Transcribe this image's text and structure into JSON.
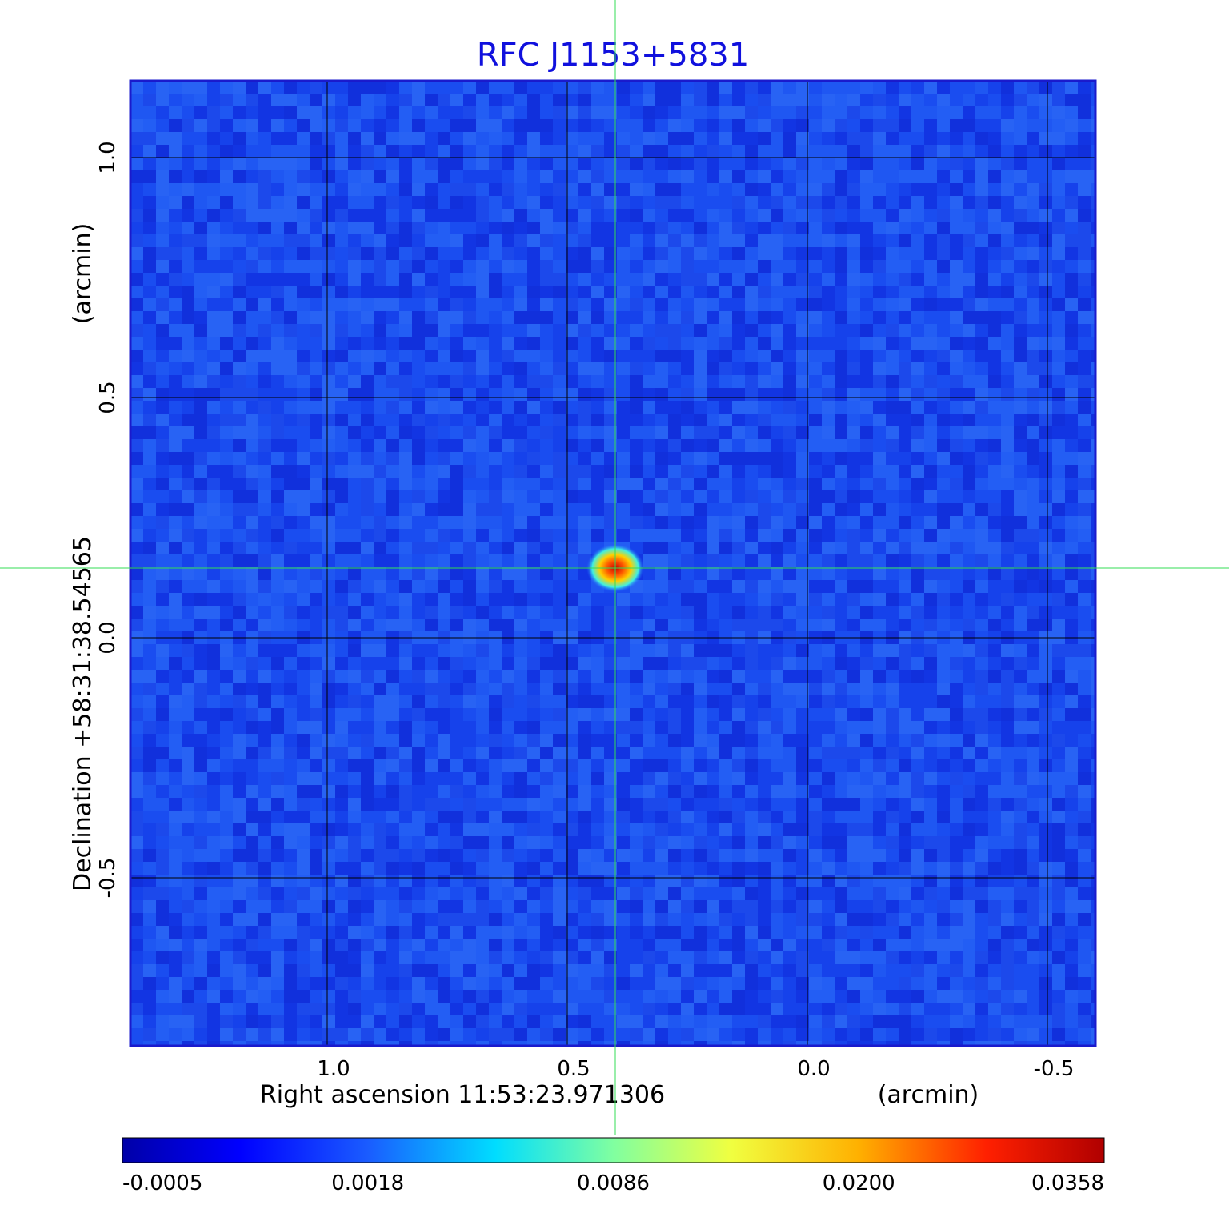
{
  "chart_data": {
    "type": "heatmap",
    "title": "RFC J1153+5831",
    "x_axis": {
      "label_main": "Right ascension  11:53:23.971306",
      "label_unit": "(arcmin)",
      "ticks": [
        "1.0",
        "0.5",
        "0.0",
        "-0.5"
      ],
      "tick_values": [
        1.0,
        0.5,
        0.0,
        -0.5
      ],
      "range": [
        1.41,
        -0.6
      ]
    },
    "y_axis": {
      "label_main": "Declination  +58:31:38.54565",
      "label_unit": "(arcmin)",
      "ticks": [
        "1.0",
        "0.5",
        "0.0",
        "-0.5"
      ],
      "tick_values": [
        1.0,
        0.5,
        0.0,
        -0.5
      ],
      "range": [
        -0.85,
        1.16
      ]
    },
    "grid": true,
    "crosshair": {
      "x": 0.4,
      "y": 0.145,
      "color": "#33dd55"
    },
    "source": {
      "x": 0.4,
      "y": 0.145,
      "peak": 0.0358
    },
    "colorbar": {
      "tick_labels": [
        "-0.0005",
        "0.0018",
        "0.0086",
        "0.0200",
        "0.0358"
      ],
      "min": -0.0005,
      "max": 0.0358,
      "colormap": "jet"
    },
    "colors": {
      "title": "#1010dd",
      "frame": "#1a1acc",
      "background_field": "#1f4fee",
      "grid": "#000000"
    }
  }
}
